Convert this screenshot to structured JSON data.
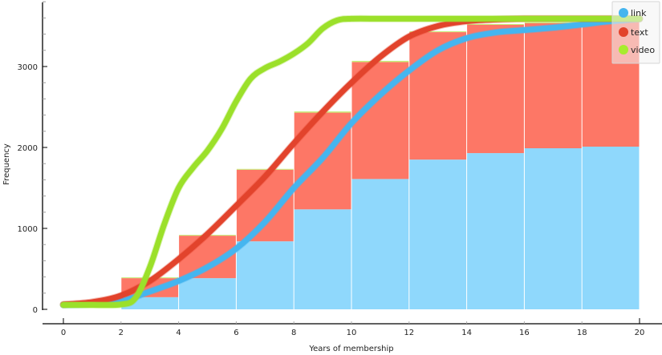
{
  "chart_data": {
    "type": "bar",
    "title": "",
    "xlabel": "Years of membership",
    "ylabel": "Frequency",
    "xlim": [
      -0.7,
      20.7
    ],
    "ylim": [
      0,
      3800
    ],
    "x_ticks": [
      0,
      2,
      4,
      6,
      8,
      10,
      12,
      14,
      16,
      18,
      20
    ],
    "y_ticks": [
      0,
      1000,
      2000,
      3000
    ],
    "y_minor_step": 200,
    "grid": false,
    "legend_position": "top-right",
    "stacked": true,
    "bin_edges": [
      2,
      4,
      6,
      8,
      10,
      12,
      14,
      16,
      18,
      20
    ],
    "series": [
      {
        "name": "link",
        "color": "#8fd8fc",
        "line_color": "#45b5ef",
        "values": [
          150,
          385,
          840,
          1235,
          1610,
          1850,
          1930,
          1990,
          2010
        ]
      },
      {
        "name": "text",
        "color": "#fd7766",
        "line_color": "#e2432c",
        "values": [
          235,
          525,
          885,
          1195,
          1445,
          1575,
          1585,
          1545,
          1535
        ]
      },
      {
        "name": "video",
        "color": "#c6ef7a",
        "line_color": "#9be02a",
        "values": [
          10,
          10,
          10,
          15,
          15,
          10,
          10,
          10,
          10
        ]
      }
    ],
    "curves": [
      {
        "name": "link",
        "x": [
          0,
          1,
          2,
          3,
          4,
          5,
          6,
          7,
          8,
          9,
          10,
          11,
          12,
          13,
          14,
          15,
          16,
          17,
          18,
          19,
          20
        ],
        "y": [
          55,
          65,
          100,
          220,
          350,
          520,
          750,
          1080,
          1500,
          1870,
          2300,
          2650,
          2950,
          3200,
          3350,
          3420,
          3450,
          3480,
          3520,
          3560,
          3590
        ]
      },
      {
        "name": "text",
        "x": [
          0,
          1,
          2,
          3,
          4,
          5,
          6,
          7,
          8,
          9,
          10,
          11,
          12,
          13,
          14,
          15,
          16,
          17,
          18,
          19,
          20
        ],
        "y": [
          60,
          90,
          170,
          350,
          620,
          930,
          1280,
          1640,
          2050,
          2440,
          2800,
          3120,
          3370,
          3500,
          3560,
          3580,
          3590,
          3590,
          3590,
          3590,
          3590
        ]
      },
      {
        "name": "video",
        "x": [
          0,
          1,
          2,
          2.5,
          3,
          3.5,
          4,
          4.5,
          5,
          5.5,
          6,
          6.5,
          7,
          7.5,
          8,
          8.5,
          9,
          9.5,
          10,
          11,
          12,
          14,
          16,
          18,
          20
        ],
        "y": [
          55,
          55,
          60,
          140,
          520,
          1050,
          1500,
          1750,
          1960,
          2230,
          2570,
          2850,
          2980,
          3060,
          3160,
          3290,
          3470,
          3570,
          3590,
          3590,
          3590,
          3590,
          3590,
          3590,
          3590
        ]
      }
    ]
  }
}
